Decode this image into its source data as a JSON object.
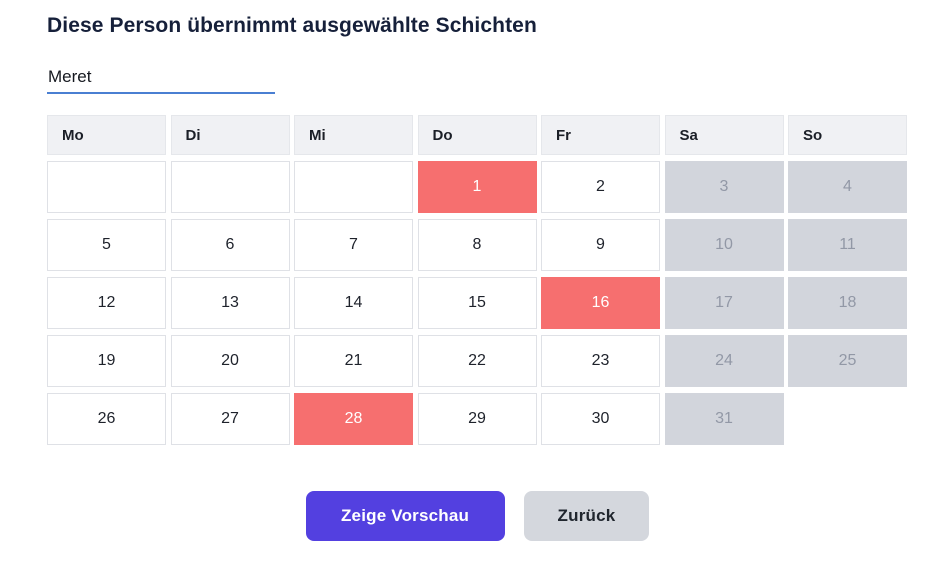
{
  "title": "Diese Person übernimmt ausgewählte Schichten",
  "name_input": {
    "value": "Meret"
  },
  "calendar": {
    "weekdays": [
      "Mo",
      "Di",
      "Mi",
      "Do",
      "Fr",
      "Sa",
      "So"
    ],
    "rows": [
      [
        {
          "day": "",
          "state": "empty"
        },
        {
          "day": "",
          "state": "empty"
        },
        {
          "day": "",
          "state": "empty"
        },
        {
          "day": "1",
          "state": "selected"
        },
        {
          "day": "2",
          "state": "normal"
        },
        {
          "day": "3",
          "state": "disabled"
        },
        {
          "day": "4",
          "state": "disabled"
        }
      ],
      [
        {
          "day": "5",
          "state": "normal"
        },
        {
          "day": "6",
          "state": "normal"
        },
        {
          "day": "7",
          "state": "normal"
        },
        {
          "day": "8",
          "state": "normal"
        },
        {
          "day": "9",
          "state": "normal"
        },
        {
          "day": "10",
          "state": "disabled"
        },
        {
          "day": "11",
          "state": "disabled"
        }
      ],
      [
        {
          "day": "12",
          "state": "normal"
        },
        {
          "day": "13",
          "state": "normal"
        },
        {
          "day": "14",
          "state": "normal"
        },
        {
          "day": "15",
          "state": "normal"
        },
        {
          "day": "16",
          "state": "selected"
        },
        {
          "day": "17",
          "state": "disabled"
        },
        {
          "day": "18",
          "state": "disabled"
        }
      ],
      [
        {
          "day": "19",
          "state": "normal"
        },
        {
          "day": "20",
          "state": "normal"
        },
        {
          "day": "21",
          "state": "normal"
        },
        {
          "day": "22",
          "state": "normal"
        },
        {
          "day": "23",
          "state": "normal"
        },
        {
          "day": "24",
          "state": "disabled"
        },
        {
          "day": "25",
          "state": "disabled"
        }
      ],
      [
        {
          "day": "26",
          "state": "normal"
        },
        {
          "day": "27",
          "state": "normal"
        },
        {
          "day": "28",
          "state": "selected"
        },
        {
          "day": "29",
          "state": "normal"
        },
        {
          "day": "30",
          "state": "normal"
        },
        {
          "day": "31",
          "state": "disabled"
        },
        {
          "day": "",
          "state": "none"
        }
      ]
    ]
  },
  "buttons": {
    "preview": "Zeige Vorschau",
    "back": "Zurück"
  },
  "colors": {
    "selected_day": "#f66f6f",
    "disabled_day_bg": "#d2d5dc",
    "disabled_day_text": "#9298a6",
    "primary_button": "#5340e0",
    "back_button": "#d4d7dd",
    "input_underline": "#4a7fd2",
    "title_text": "#16203a"
  }
}
